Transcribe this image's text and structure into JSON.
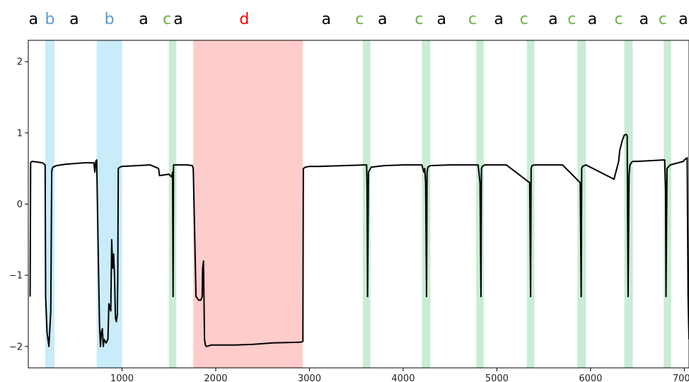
{
  "chart_data": {
    "type": "line",
    "title": "",
    "xlabel": "",
    "ylabel": "",
    "xlim": [
      0,
      7050
    ],
    "ylim": [
      -2.3,
      2.3
    ],
    "x_ticks": [
      {
        "value": 1000,
        "label": "1000"
      },
      {
        "value": 2000,
        "label": "2000"
      },
      {
        "value": 3000,
        "label": "3000"
      },
      {
        "value": 4000,
        "label": "4000"
      },
      {
        "value": 5000,
        "label": "5000"
      },
      {
        "value": 6000,
        "label": "6000"
      },
      {
        "value": 7000,
        "label": "7000"
      }
    ],
    "y_ticks": [
      {
        "value": 2,
        "label": "2"
      },
      {
        "value": 1,
        "label": "1"
      },
      {
        "value": 0,
        "label": "0"
      },
      {
        "value": -1,
        "label": "−1"
      },
      {
        "value": -2,
        "label": "−2"
      }
    ],
    "colors": {
      "a": "#000000",
      "b": "#5b9bd5",
      "c": "#70ad47",
      "d": "#ff0000",
      "band_b": "#c9ecfa",
      "band_c": "#c8ecd4",
      "band_d": "#ffcccc",
      "line": "#000000"
    },
    "regions": [
      {
        "label": "b",
        "start": 180,
        "end": 280
      },
      {
        "label": "b",
        "start": 730,
        "end": 1000
      },
      {
        "label": "c",
        "start": 1500,
        "end": 1580
      },
      {
        "label": "d",
        "start": 1760,
        "end": 2930
      },
      {
        "label": "c",
        "start": 3570,
        "end": 3650
      },
      {
        "label": "c",
        "start": 4200,
        "end": 4290
      },
      {
        "label": "c",
        "start": 4780,
        "end": 4860
      },
      {
        "label": "c",
        "start": 5320,
        "end": 5400
      },
      {
        "label": "c",
        "start": 5860,
        "end": 5950
      },
      {
        "label": "c",
        "start": 6360,
        "end": 6450
      },
      {
        "label": "c",
        "start": 6780,
        "end": 6860
      }
    ],
    "segment_labels": [
      {
        "label": "a",
        "x": 55
      },
      {
        "label": "b",
        "x": 230
      },
      {
        "label": "a",
        "x": 490
      },
      {
        "label": "b",
        "x": 865
      },
      {
        "label": "a",
        "x": 1230
      },
      {
        "label": "c",
        "x": 1480
      },
      {
        "label": "a",
        "x": 1600
      },
      {
        "label": "d",
        "x": 2305
      },
      {
        "label": "a",
        "x": 3180
      },
      {
        "label": "c",
        "x": 3535
      },
      {
        "label": "a",
        "x": 3780
      },
      {
        "label": "c",
        "x": 4170
      },
      {
        "label": "a",
        "x": 4410
      },
      {
        "label": "c",
        "x": 4740
      },
      {
        "label": "a",
        "x": 5020
      },
      {
        "label": "c",
        "x": 5290
      },
      {
        "label": "a",
        "x": 5600
      },
      {
        "label": "c",
        "x": 5800
      },
      {
        "label": "a",
        "x": 6020
      },
      {
        "label": "c",
        "x": 6300
      },
      {
        "label": "a",
        "x": 6570
      },
      {
        "label": "c",
        "x": 6770
      },
      {
        "label": "a",
        "x": 6990
      }
    ],
    "series": [
      {
        "x": [
          20,
          25,
          40,
          150,
          180,
          185,
          200,
          220,
          240,
          250,
          255,
          265,
          280,
          300,
          400,
          600,
          700,
          710,
          720,
          730,
          750,
          760,
          770,
          780,
          790,
          800,
          810,
          830,
          850,
          860,
          880,
          890,
          900,
          910,
          920,
          930,
          940,
          950,
          955,
          960,
          980,
          1000,
          1300,
          1390,
          1400,
          1500,
          1530,
          1540,
          1545,
          1550,
          1560,
          1700,
          1750,
          1760,
          1790,
          1820,
          1840,
          1855,
          1860,
          1870,
          1880,
          1890,
          1900,
          1950,
          2200,
          2400,
          2600,
          2900,
          2930,
          2935,
          2960,
          3000,
          3100,
          3600,
          3610,
          3615,
          3620,
          3630,
          3660,
          3800,
          4000,
          4200,
          4220,
          4230,
          4240,
          4250,
          4255,
          4265,
          4290,
          4500,
          4800,
          4820,
          4830,
          4835,
          4845,
          4870,
          5100,
          5350,
          5360,
          5365,
          5375,
          5400,
          5700,
          5890,
          5900,
          5905,
          5915,
          5950,
          6250,
          6300,
          6310,
          6340,
          6360,
          6380,
          6390,
          6400,
          6410,
          6420,
          6430,
          6435,
          6450,
          6500,
          6780,
          6790,
          6800,
          6805,
          6815,
          6850,
          6990,
          7000,
          7030,
          7040,
          7050
        ],
        "y": [
          -1.3,
          0.58,
          0.6,
          0.58,
          0.55,
          -1.3,
          -1.8,
          -2.0,
          -1.5,
          0.45,
          0.5,
          0.52,
          0.53,
          0.54,
          0.56,
          0.58,
          0.58,
          0.45,
          0.6,
          0.62,
          -1.0,
          -1.7,
          -2.0,
          -1.8,
          -1.75,
          -2.0,
          -1.9,
          -1.95,
          -1.9,
          -1.4,
          -1.5,
          -0.5,
          -0.9,
          -0.7,
          -1.0,
          -1.6,
          -1.65,
          -1.55,
          -1.0,
          0.5,
          0.52,
          0.53,
          0.55,
          0.5,
          0.4,
          0.42,
          0.38,
          0.45,
          -1.3,
          0.55,
          0.55,
          0.55,
          0.54,
          0.5,
          -1.3,
          -1.35,
          -1.35,
          -1.3,
          -0.9,
          -0.8,
          -1.9,
          -1.98,
          -2.0,
          -1.98,
          -1.98,
          -1.97,
          -1.95,
          -1.94,
          -1.93,
          0.5,
          0.52,
          0.53,
          0.53,
          0.55,
          0.55,
          0.2,
          -1.3,
          0.45,
          0.52,
          0.54,
          0.55,
          0.55,
          0.45,
          0.5,
          0.3,
          -1.3,
          0.45,
          0.52,
          0.54,
          0.55,
          0.55,
          0.3,
          -1.3,
          0.5,
          0.53,
          0.55,
          0.55,
          0.3,
          -1.3,
          0.5,
          0.54,
          0.55,
          0.55,
          0.3,
          -1.3,
          0.5,
          0.53,
          0.55,
          0.35,
          0.6,
          0.75,
          0.9,
          0.97,
          0.98,
          0.96,
          -1.3,
          0.4,
          0.55,
          0.57,
          0.58,
          0.6,
          0.6,
          0.62,
          0.62,
          0.2,
          -1.3,
          0.5,
          0.55,
          0.6,
          0.62,
          0.65,
          -1.3,
          -1.9
        ]
      }
    ]
  }
}
